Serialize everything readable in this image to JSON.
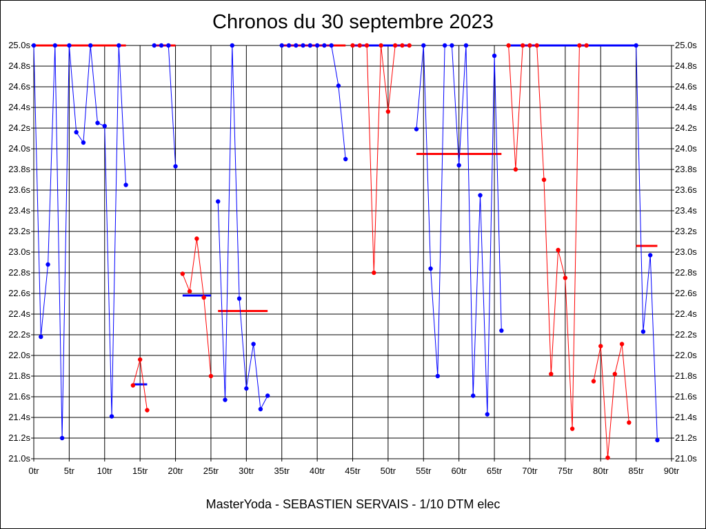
{
  "chart_data": {
    "type": "line",
    "title": "Chronos du 30 septembre 2023",
    "footer": "MasterYoda - SEBASTIEN SERVAIS - 1/10 DTM elec",
    "xlim": [
      0,
      90
    ],
    "ylim": [
      21.0,
      25.0
    ],
    "x_ticks": [
      0,
      5,
      10,
      15,
      20,
      25,
      30,
      35,
      40,
      45,
      50,
      55,
      60,
      65,
      70,
      75,
      80,
      85,
      90
    ],
    "x_tick_labels": [
      "0tr",
      "5tr",
      "10tr",
      "15tr",
      "20tr",
      "25tr",
      "30tr",
      "35tr",
      "40tr",
      "45tr",
      "50tr",
      "55tr",
      "60tr",
      "65tr",
      "70tr",
      "75tr",
      "80tr",
      "85tr",
      "90tr"
    ],
    "y_ticks": [
      21.0,
      21.2,
      21.4,
      21.6,
      21.8,
      22.0,
      22.2,
      22.4,
      22.6,
      22.8,
      23.0,
      23.2,
      23.4,
      23.6,
      23.8,
      24.0,
      24.2,
      24.4,
      24.6,
      24.8,
      25.0
    ],
    "y_tick_labels": [
      "21.0s",
      "21.2s",
      "21.4s",
      "21.6s",
      "21.8s",
      "22.0s",
      "22.2s",
      "22.4s",
      "22.6s",
      "22.8s",
      "23.0s",
      "23.2s",
      "23.4s",
      "23.6s",
      "23.8s",
      "24.0s",
      "24.2s",
      "24.4s",
      "24.6s",
      "24.8s",
      "25.0s"
    ],
    "grid": true,
    "colors": {
      "blue": "#0000ff",
      "red": "#ff0000",
      "grid": "#000000"
    },
    "series": [
      {
        "color": "blue",
        "points": [
          [
            0,
            25.0
          ],
          [
            1,
            22.18
          ],
          [
            2,
            22.88
          ],
          [
            3,
            25.0
          ],
          [
            4,
            21.2
          ],
          [
            5,
            25.0
          ],
          [
            6,
            24.16
          ],
          [
            7,
            24.06
          ],
          [
            8,
            25.0
          ],
          [
            9,
            24.25
          ],
          [
            10,
            24.22
          ],
          [
            11,
            21.41
          ],
          [
            12,
            25.0
          ],
          [
            13,
            23.65
          ]
        ]
      },
      {
        "color": "blue",
        "points": [
          [
            17,
            25.0
          ],
          [
            18,
            25.0
          ],
          [
            19,
            25.0
          ],
          [
            20,
            23.83
          ]
        ]
      },
      {
        "color": "red",
        "points": [
          [
            14,
            21.71
          ],
          [
            15,
            21.96
          ],
          [
            16,
            21.47
          ]
        ]
      },
      {
        "color": "red",
        "points": [
          [
            21,
            22.79
          ],
          [
            22,
            22.62
          ],
          [
            23,
            23.13
          ],
          [
            24,
            22.56
          ],
          [
            25,
            21.8
          ]
        ]
      },
      {
        "color": "blue",
        "points": [
          [
            26,
            23.49
          ],
          [
            27,
            21.57
          ],
          [
            28,
            25.0
          ],
          [
            29,
            22.55
          ],
          [
            30,
            21.68
          ],
          [
            31,
            22.11
          ],
          [
            32,
            21.48
          ],
          [
            33,
            21.61
          ]
        ]
      },
      {
        "color": "blue",
        "points": [
          [
            35,
            25.0
          ],
          [
            36,
            25.0
          ],
          [
            37,
            25.0
          ],
          [
            38,
            25.0
          ],
          [
            39,
            25.0
          ],
          [
            40,
            25.0
          ],
          [
            41,
            25.0
          ],
          [
            42,
            25.0
          ],
          [
            43,
            24.61
          ],
          [
            44,
            23.9
          ]
        ]
      },
      {
        "color": "red",
        "points": [
          [
            45,
            25.0
          ],
          [
            46,
            25.0
          ],
          [
            47,
            25.0
          ],
          [
            48,
            22.8
          ],
          [
            49,
            25.0
          ],
          [
            50,
            24.36
          ],
          [
            51,
            25.0
          ],
          [
            52,
            25.0
          ],
          [
            53,
            25.0
          ]
        ]
      },
      {
        "color": "blue",
        "points": [
          [
            54,
            24.19
          ],
          [
            55,
            25.0
          ],
          [
            56,
            22.84
          ],
          [
            57,
            21.8
          ],
          [
            58,
            25.0
          ],
          [
            59,
            25.0
          ],
          [
            60,
            23.84
          ],
          [
            61,
            25.0
          ],
          [
            62,
            21.61
          ],
          [
            63,
            23.55
          ],
          [
            64,
            21.43
          ],
          [
            65,
            24.9
          ],
          [
            66,
            22.24
          ]
        ]
      },
      {
        "color": "red",
        "points": [
          [
            67,
            25.0
          ],
          [
            68,
            23.8
          ],
          [
            69,
            25.0
          ],
          [
            70,
            25.0
          ],
          [
            71,
            25.0
          ],
          [
            72,
            23.7
          ],
          [
            73,
            21.82
          ],
          [
            74,
            23.02
          ],
          [
            75,
            22.75
          ],
          [
            76,
            21.29
          ],
          [
            77,
            25.0
          ],
          [
            78,
            25.0
          ]
        ]
      },
      {
        "color": "red",
        "points": [
          [
            79,
            21.75
          ],
          [
            80,
            22.09
          ],
          [
            81,
            21.01
          ],
          [
            82,
            21.82
          ],
          [
            83,
            22.11
          ],
          [
            84,
            21.35
          ]
        ]
      },
      {
        "color": "blue",
        "points": [
          [
            85,
            25.0
          ],
          [
            86,
            22.23
          ],
          [
            87,
            22.97
          ],
          [
            88,
            21.18
          ]
        ]
      }
    ],
    "averages": [
      {
        "color": "red",
        "x": [
          0,
          13
        ],
        "y": 25.0
      },
      {
        "color": "red",
        "x": [
          17,
          20
        ],
        "y": 25.0
      },
      {
        "color": "blue",
        "x": [
          14,
          16
        ],
        "y": 21.72
      },
      {
        "color": "blue",
        "x": [
          21,
          25
        ],
        "y": 22.58
      },
      {
        "color": "red",
        "x": [
          26,
          33
        ],
        "y": 22.43
      },
      {
        "color": "red",
        "x": [
          35,
          44
        ],
        "y": 25.0
      },
      {
        "color": "blue",
        "x": [
          45,
          53
        ],
        "y": 25.0
      },
      {
        "color": "red",
        "x": [
          54,
          66
        ],
        "y": 23.95
      },
      {
        "color": "blue",
        "x": [
          67,
          85
        ],
        "y": 25.0
      },
      {
        "color": "red",
        "x": [
          85,
          88
        ],
        "y": 23.06
      }
    ]
  }
}
